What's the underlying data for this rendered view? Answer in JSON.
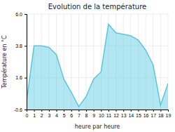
{
  "chart_data": {
    "type": "area",
    "title": "Evolution de la température",
    "xlabel": "heure par heure",
    "ylabel": "Température en °C",
    "x": [
      0,
      1,
      2,
      3,
      4,
      5,
      6,
      7,
      8,
      9,
      10,
      11,
      12,
      13,
      14,
      15,
      16,
      17,
      18,
      19
    ],
    "values": [
      0.0,
      3.8,
      3.8,
      3.7,
      3.2,
      1.5,
      0.6,
      -0.4,
      0.3,
      1.5,
      2.0,
      5.3,
      4.7,
      4.6,
      4.5,
      4.2,
      3.5,
      2.5,
      -0.3,
      1.2
    ],
    "color": "#55c8e0",
    "xlim": [
      0,
      19
    ],
    "xticks": [
      0,
      1,
      2,
      3,
      4,
      5,
      6,
      7,
      8,
      9,
      10,
      11,
      12,
      13,
      14,
      15,
      16,
      17,
      18,
      19
    ],
    "ylim": [
      -0.6,
      6.0
    ],
    "yticks": [
      -0.6,
      1.6,
      3.8,
      {
        "value": 6.0,
        "label": "6.0"
      }
    ],
    "grid": true
  }
}
